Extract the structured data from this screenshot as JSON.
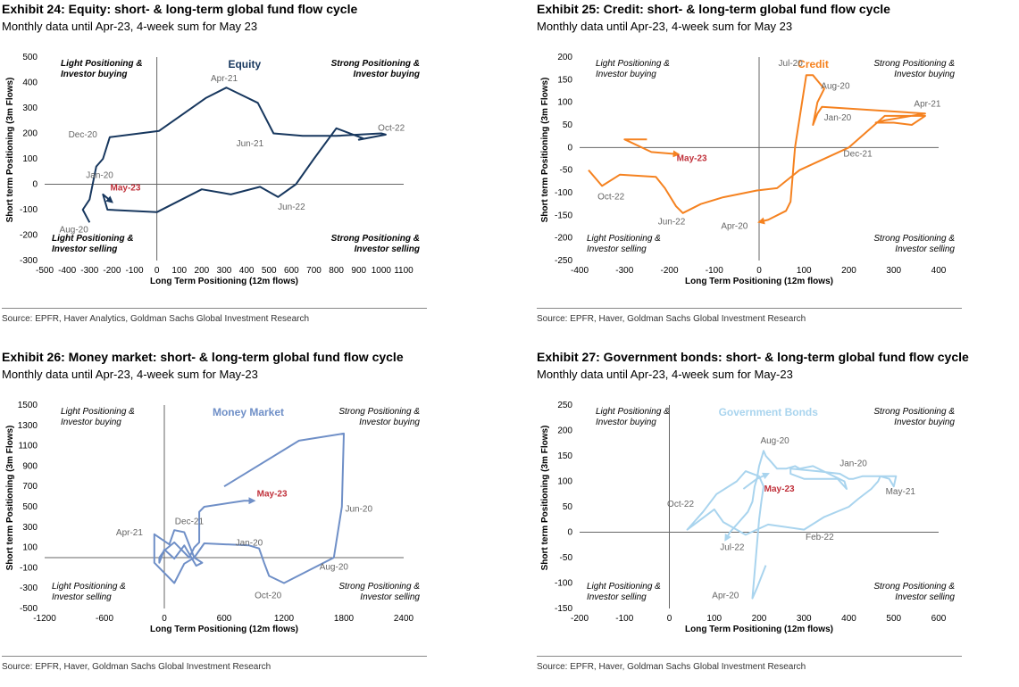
{
  "charts": [
    {
      "title": "Exhibit 24: Equity: short- & long-term global fund flow cycle",
      "subtitle": "Monthly data until Apr-23, 4-week sum for May 23",
      "source": "Source: EPFR, Haver Analytics, Goldman Sachs Global Investment Research",
      "quadrants": {
        "tl": [
          "Light Positioning &",
          "Investor buying"
        ],
        "tr": [
          "Strong Positioning &",
          "Investor buying"
        ],
        "bl": [
          "Light Positioning &",
          "Investor selling"
        ],
        "br": [
          "Strong Positioning &",
          "Investor selling"
        ]
      },
      "quad_bold": true,
      "name_color": "#17375e"
    },
    {
      "title": "Exhibit 25: Credit: short- & long-term global fund flow cycle",
      "subtitle": "Monthly data until Apr-23, 4-week sum for May 23",
      "source": "Source: EPFR, Haver, Goldman Sachs Global Investment Research",
      "quadrants": {
        "tl": [
          "Light Positioning &",
          "Investor buying"
        ],
        "tr": [
          "Strong Positioning &",
          "Investor buying"
        ],
        "bl": [
          "Light Positioning &",
          "Investor selling"
        ],
        "br": [
          "Strong Positioning &",
          "Investor selling"
        ]
      },
      "quad_bold": false,
      "name_color": "#f58220"
    },
    {
      "title": "Exhibit 26: Money market: short- & long-term global fund flow cycle",
      "subtitle": "Monthly data until Apr-23, 4-week sum for May-23",
      "source": "Source: EPFR, Haver, Goldman Sachs Global Investment Research",
      "quadrants": {
        "tl": [
          "Light Positioning &",
          "Investor buying"
        ],
        "tr": [
          "Strong Positioning &",
          "Investor buying"
        ],
        "bl": [
          "Light Positioning &",
          "Investor selling"
        ],
        "br": [
          "Strong Positioning &",
          "Investor selling"
        ]
      },
      "quad_bold": false,
      "name_color": "#6f8fc7"
    },
    {
      "title": "Exhibit 27: Government bonds: short- & long-term global fund flow cycle",
      "subtitle": "Monthly data until Apr-23, 4-week sum for May-23",
      "source": "Source: EPFR, Haver, Goldman Sachs Global Investment Research",
      "quadrants": {
        "tl": [
          "Light Positioning &",
          "Investor buying"
        ],
        "tr": [
          "Strong Positioning &",
          "Investor buying"
        ],
        "bl": [
          "Light Positioning &",
          "Investor selling"
        ],
        "br": [
          "Strong Positioning &",
          "Investor selling"
        ]
      },
      "quad_bold": false,
      "name_color": "#a9d4ee"
    }
  ],
  "chart_data": [
    {
      "type": "line",
      "series": [
        {
          "name": "Equity",
          "color": "#17375e"
        }
      ],
      "xlabel": "Long Term Positioning (12m flows)",
      "ylabel": "Short term Positioning (3m Flows)",
      "xlim": [
        -500,
        1100
      ],
      "ylim": [
        -300,
        500
      ],
      "xticks": [
        -500,
        -400,
        -300,
        -200,
        -100,
        0,
        100,
        200,
        300,
        400,
        500,
        600,
        700,
        800,
        900,
        1000,
        1100
      ],
      "yticks": [
        -300,
        -200,
        -100,
        0,
        100,
        200,
        300,
        400,
        500
      ],
      "path": [
        [
          -300,
          -150
        ],
        [
          -330,
          -100
        ],
        [
          -300,
          -60
        ],
        [
          -270,
          70
        ],
        [
          -240,
          100
        ],
        [
          -210,
          185
        ],
        [
          10,
          210
        ],
        [
          220,
          340
        ],
        [
          310,
          380
        ],
        [
          450,
          320
        ],
        [
          520,
          200
        ],
        [
          650,
          190
        ],
        [
          800,
          190
        ],
        [
          1000,
          200
        ],
        [
          1020,
          195
        ],
        [
          900,
          175
        ],
        [
          920,
          180
        ],
        [
          800,
          220
        ],
        [
          700,
          100
        ],
        [
          620,
          0
        ],
        [
          540,
          -50
        ],
        [
          460,
          -10
        ],
        [
          330,
          -40
        ],
        [
          300,
          -35
        ],
        [
          200,
          -20
        ],
        [
          0,
          -110
        ],
        [
          -220,
          -100
        ],
        [
          -240,
          -40
        ],
        [
          -200,
          -70
        ]
      ],
      "labels": [
        {
          "text": "Apr-21",
          "x": 300,
          "y": 405
        },
        {
          "text": "Dec-20",
          "x": -330,
          "y": 185
        },
        {
          "text": "Jun-21",
          "x": 415,
          "y": 150
        },
        {
          "text": "Oct-22",
          "x": 1045,
          "y": 210
        },
        {
          "text": "Jan-20",
          "x": -255,
          "y": 25
        },
        {
          "text": "Jun-22",
          "x": 600,
          "y": -100
        },
        {
          "text": "Aug-20",
          "x": -370,
          "y": -190
        }
      ],
      "highlight": {
        "text": "May-23",
        "x": -140,
        "y": -25
      }
    },
    {
      "type": "line",
      "series": [
        {
          "name": "Credit",
          "color": "#f58220"
        }
      ],
      "xlabel": "Long Term Positioning (12m flows)",
      "ylabel": "Short term Positioning (3m Flows)",
      "xlim": [
        -400,
        400
      ],
      "ylim": [
        -250,
        200
      ],
      "xticks": [
        -400,
        -300,
        -200,
        -100,
        0,
        100,
        200,
        300,
        400
      ],
      "yticks": [
        -250,
        -200,
        -150,
        -100,
        -50,
        0,
        50,
        100,
        150,
        200
      ],
      "path": [
        [
          -380,
          -50
        ],
        [
          -350,
          -85
        ],
        [
          -310,
          -60
        ],
        [
          -230,
          -65
        ],
        [
          -210,
          -90
        ],
        [
          -185,
          -130
        ],
        [
          -170,
          -145
        ],
        [
          -130,
          -125
        ],
        [
          -80,
          -110
        ],
        [
          -5,
          -95
        ],
        [
          40,
          -90
        ],
        [
          90,
          -50
        ],
        [
          200,
          0
        ],
        [
          280,
          70
        ],
        [
          370,
          70
        ],
        [
          340,
          50
        ],
        [
          300,
          55
        ],
        [
          260,
          55
        ],
        [
          280,
          60
        ],
        [
          370,
          75
        ],
        [
          140,
          90
        ],
        [
          130,
          75
        ],
        [
          120,
          50
        ],
        [
          125,
          75
        ],
        [
          130,
          100
        ],
        [
          145,
          130
        ],
        [
          120,
          160
        ],
        [
          105,
          160
        ],
        [
          80,
          0
        ],
        [
          70,
          -120
        ],
        [
          60,
          -140
        ],
        [
          20,
          -160
        ],
        [
          0,
          -165
        ]
      ],
      "labels": [
        {
          "text": "Jul-20",
          "x": 70,
          "y": 180
        },
        {
          "text": "Aug-20",
          "x": 170,
          "y": 130
        },
        {
          "text": "Jan-20",
          "x": 175,
          "y": 60
        },
        {
          "text": "Apr-21",
          "x": 375,
          "y": 90
        },
        {
          "text": "Dec-21",
          "x": 220,
          "y": -20
        },
        {
          "text": "Oct-22",
          "x": -330,
          "y": -115
        },
        {
          "text": "Jun-22",
          "x": -195,
          "y": -170
        },
        {
          "text": "Apr-20",
          "x": -55,
          "y": -180
        }
      ],
      "highlight": {
        "text": "May-23",
        "x": -150,
        "y": -30
      },
      "tail": [
        [
          -250,
          18
        ],
        [
          -300,
          18
        ],
        [
          -240,
          -10
        ],
        [
          -180,
          -15
        ]
      ]
    },
    {
      "type": "line",
      "series": [
        {
          "name": "Money Market",
          "color": "#6f8fc7"
        }
      ],
      "xlabel": "Long Term Positioning (12m flows)",
      "ylabel": "Short term Positioning (3m Flows)",
      "xlim": [
        -1200,
        2400
      ],
      "ylim": [
        -500,
        1500
      ],
      "xticks": [
        -1200,
        -600,
        0,
        600,
        1200,
        1800,
        2400
      ],
      "yticks": [
        -500,
        -300,
        -100,
        100,
        300,
        500,
        700,
        900,
        1100,
        1300,
        1500
      ],
      "path": [
        [
          600,
          700
        ],
        [
          1350,
          1150
        ],
        [
          1800,
          1220
        ],
        [
          1780,
          500
        ],
        [
          1700,
          0
        ],
        [
          1500,
          -100
        ],
        [
          1200,
          -250
        ],
        [
          1050,
          -180
        ],
        [
          1000,
          -50
        ],
        [
          950,
          90
        ],
        [
          850,
          120
        ],
        [
          400,
          140
        ],
        [
          300,
          0
        ],
        [
          200,
          250
        ],
        [
          100,
          270
        ],
        [
          50,
          130
        ],
        [
          -100,
          230
        ],
        [
          -100,
          -50
        ],
        [
          100,
          -250
        ],
        [
          200,
          -60
        ],
        [
          300,
          0
        ],
        [
          380,
          -50
        ],
        [
          320,
          -80
        ],
        [
          200,
          120
        ],
        [
          100,
          -10
        ],
        [
          0,
          80
        ],
        [
          -50,
          -50
        ],
        [
          -50,
          0
        ],
        [
          0,
          70
        ],
        [
          100,
          150
        ],
        [
          250,
          0
        ],
        [
          300,
          100
        ],
        [
          350,
          150
        ],
        [
          350,
          450
        ],
        [
          400,
          500
        ],
        [
          800,
          560
        ],
        [
          900,
          560
        ]
      ],
      "labels": [
        {
          "text": "Dec-21",
          "x": 250,
          "y": 330
        },
        {
          "text": "Apr-21",
          "x": -350,
          "y": 220
        },
        {
          "text": "Jan-20",
          "x": 850,
          "y": 120
        },
        {
          "text": "Jun-20",
          "x": 1950,
          "y": 450
        },
        {
          "text": "Aug-20",
          "x": 1700,
          "y": -120
        },
        {
          "text": "Oct-20",
          "x": 1040,
          "y": -400
        }
      ],
      "highlight": {
        "text": "May-23",
        "x": 1080,
        "y": 600
      }
    },
    {
      "type": "line",
      "series": [
        {
          "name": "Government Bonds",
          "color": "#a9d4ee"
        }
      ],
      "xlabel": "Long Term Positioning (12m flows)",
      "ylabel": "Short term Positioning (3m Flows)",
      "xlim": [
        -200,
        600
      ],
      "ylim": [
        -150,
        250
      ],
      "xticks": [
        -200,
        -100,
        0,
        100,
        200,
        300,
        400,
        500,
        600
      ],
      "yticks": [
        -150,
        -100,
        -50,
        0,
        50,
        100,
        150,
        200,
        250
      ],
      "path": [
        [
          215,
          -65
        ],
        [
          195,
          -110
        ],
        [
          185,
          -130
        ],
        [
          200,
          25
        ],
        [
          205,
          60
        ],
        [
          210,
          90
        ],
        [
          200,
          110
        ],
        [
          170,
          120
        ],
        [
          150,
          100
        ],
        [
          105,
          75
        ],
        [
          75,
          40
        ],
        [
          40,
          5
        ],
        [
          70,
          25
        ],
        [
          100,
          45
        ],
        [
          120,
          20
        ],
        [
          170,
          -5
        ],
        [
          220,
          15
        ],
        [
          300,
          5
        ],
        [
          345,
          30
        ],
        [
          400,
          50
        ],
        [
          420,
          65
        ],
        [
          450,
          85
        ],
        [
          465,
          100
        ],
        [
          470,
          110
        ],
        [
          490,
          105
        ],
        [
          500,
          90
        ],
        [
          505,
          110
        ],
        [
          470,
          110
        ],
        [
          430,
          110
        ],
        [
          410,
          105
        ],
        [
          400,
          105
        ],
        [
          380,
          115
        ],
        [
          330,
          120
        ],
        [
          270,
          125
        ],
        [
          270,
          115
        ],
        [
          300,
          105
        ],
        [
          375,
          105
        ],
        [
          395,
          85
        ],
        [
          390,
          100
        ],
        [
          320,
          130
        ],
        [
          290,
          125
        ],
        [
          280,
          130
        ],
        [
          260,
          125
        ],
        [
          240,
          125
        ],
        [
          225,
          140
        ],
        [
          215,
          150
        ],
        [
          210,
          160
        ],
        [
          200,
          130
        ],
        [
          195,
          105
        ],
        [
          190,
          90
        ],
        [
          185,
          60
        ],
        [
          175,
          40
        ],
        [
          155,
          20
        ],
        [
          135,
          0
        ],
        [
          125,
          -15
        ]
      ],
      "labels": [
        {
          "text": "Aug-20",
          "x": 235,
          "y": 175
        },
        {
          "text": "Jan-20",
          "x": 410,
          "y": 130
        },
        {
          "text": "May-21",
          "x": 515,
          "y": 75
        },
        {
          "text": "Oct-22",
          "x": 25,
          "y": 50
        },
        {
          "text": "Feb-22",
          "x": 335,
          "y": -15
        },
        {
          "text": "Jul-22",
          "x": 140,
          "y": -35
        },
        {
          "text": "Apr-20",
          "x": 125,
          "y": -130
        }
      ],
      "highlight": {
        "text": "May-23",
        "x": 245,
        "y": 80
      },
      "tail": [
        [
          165,
          85
        ],
        [
          195,
          105
        ],
        [
          220,
          115
        ]
      ]
    }
  ]
}
